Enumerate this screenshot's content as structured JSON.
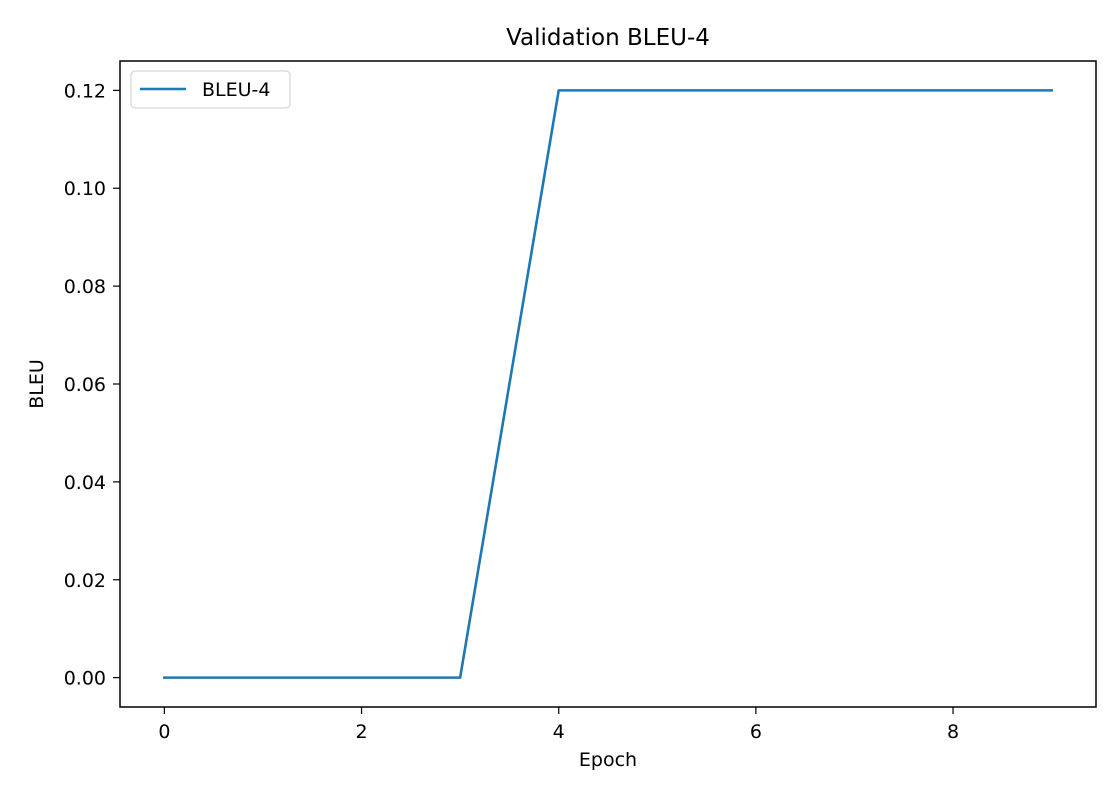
{
  "chart_data": {
    "type": "line",
    "title": "Validation BLEU-4",
    "xlabel": "Epoch",
    "ylabel": "BLEU",
    "x": [
      0,
      1,
      2,
      3,
      4,
      5,
      6,
      7,
      8,
      9
    ],
    "series": [
      {
        "name": "BLEU-4",
        "values": [
          0,
          0,
          0,
          0,
          0.12,
          0.12,
          0.12,
          0.12,
          0.12,
          0.12
        ],
        "color": "#1f77b4"
      }
    ],
    "xlim": [
      -0.45,
      9.45
    ],
    "ylim": [
      -0.006,
      0.126
    ],
    "xticks": [
      0,
      2,
      4,
      6,
      8
    ],
    "xtick_labels": [
      "0",
      "2",
      "4",
      "6",
      "8"
    ],
    "yticks": [
      0,
      0.02,
      0.04,
      0.06,
      0.08,
      0.1,
      0.12
    ],
    "ytick_labels": [
      "0.00",
      "0.02",
      "0.04",
      "0.06",
      "0.08",
      "0.10",
      "0.12"
    ],
    "grid": false,
    "legend_position": "upper left"
  }
}
